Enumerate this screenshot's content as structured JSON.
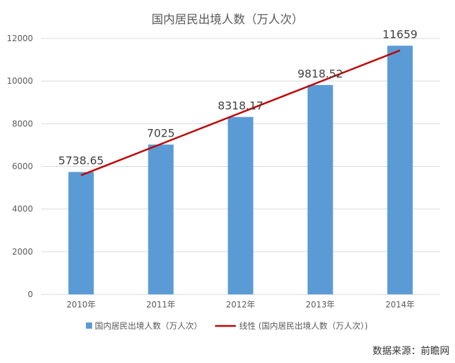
{
  "chart_data": {
    "type": "bar",
    "title": "国内居民出境人数（万人次）",
    "categories": [
      "2010年",
      "2011年",
      "2012年",
      "2013年",
      "2014年"
    ],
    "series": [
      {
        "name": "国内居民出境人数（万人次）",
        "values": [
          5738.65,
          7025,
          8318.17,
          9818.52,
          11659
        ]
      }
    ],
    "data_labels": [
      "5738.65",
      "7025",
      "8318.17",
      "9818.52",
      "11659"
    ],
    "trendline": {
      "name": "线性 (国内居民出境人数（万人次）)",
      "type": "linear"
    },
    "ylim": [
      0,
      12000
    ],
    "yticks": [
      0,
      2000,
      4000,
      6000,
      8000,
      10000,
      12000
    ],
    "grid": true,
    "legend_position": "bottom",
    "colors": {
      "bar": "#5b9bd5",
      "trendline": "#c00000",
      "grid": "#d9d9d9",
      "text": "#595959"
    }
  },
  "source_note": "数据来源：前瞻网"
}
